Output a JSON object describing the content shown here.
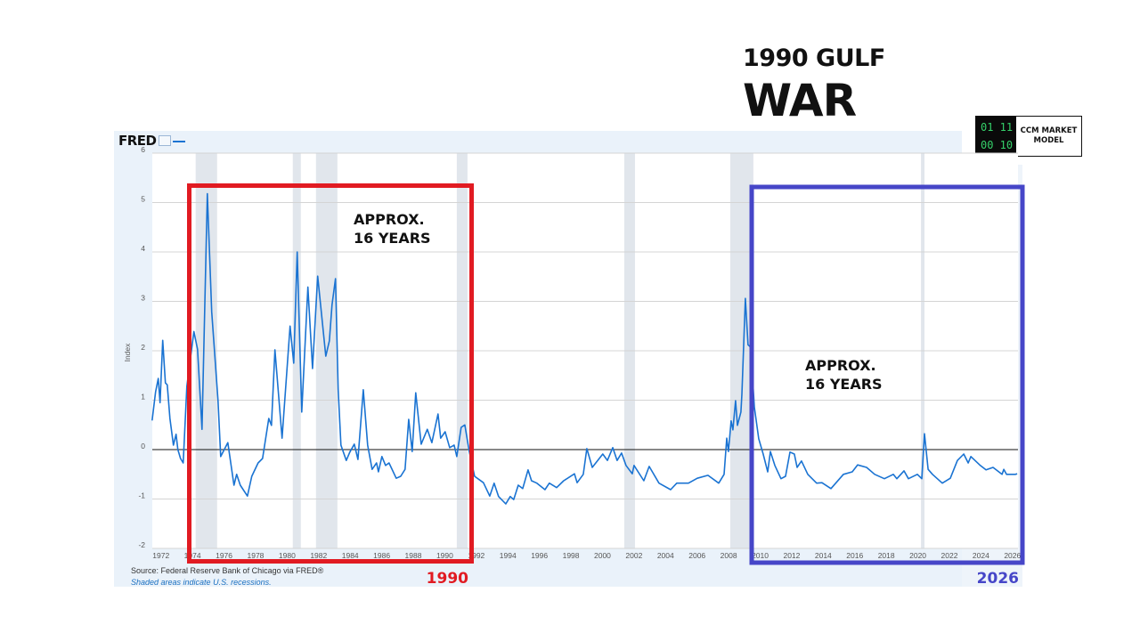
{
  "headline": {
    "line1": "1990 GULF",
    "line2": "WAR"
  },
  "logo": {
    "fred": "FRED",
    "ccm_binary": [
      "01 11",
      "00 10"
    ],
    "ccm_text": "CCM MARKET MODEL"
  },
  "footer": {
    "source": "Source: Federal Reserve Bank of Chicago via FRED®",
    "note": "Shaded areas indicate U.S. recessions."
  },
  "annotations": {
    "left_box": {
      "line1": "APPROX.",
      "line2": "16 YEARS",
      "year": "1990",
      "color": "#e11b22"
    },
    "right_box": {
      "line1": "APPROX.",
      "line2": "16 YEARS",
      "year": "2026",
      "color": "#4646c8"
    }
  },
  "chart_data": {
    "type": "line",
    "ylabel": "Index",
    "xlabel": "",
    "ylim": [
      -2,
      6
    ],
    "xlim": [
      1971.45,
      2026.35
    ],
    "yticks": [
      "6",
      "5",
      "4",
      "3",
      "2",
      "1",
      "0",
      "-1",
      "-2"
    ],
    "xticks": [
      "1972",
      "1974",
      "1976",
      "1978",
      "1980",
      "1982",
      "1984",
      "1986",
      "1988",
      "1990",
      "1992",
      "1994",
      "1996",
      "1998",
      "2000",
      "2002",
      "2004",
      "2006",
      "2008",
      "2010",
      "2012",
      "2014",
      "2016",
      "2018",
      "2020",
      "2022",
      "2024",
      "2026"
    ],
    "grid": "horizontal",
    "zero_line": true,
    "line_color": "#1a73d2",
    "recession_color": "#e1e6ec",
    "recessions": [
      [
        1974.2,
        1975.56
      ],
      [
        1980.36,
        1980.87
      ],
      [
        1981.83,
        1983.19
      ],
      [
        1990.76,
        1991.44
      ],
      [
        2001.38,
        2002.06
      ],
      [
        2008.1,
        2009.57
      ],
      [
        2020.2,
        2020.42
      ]
    ],
    "series": [
      {
        "points": [
          [
            1971.44,
            0.59
          ],
          [
            1971.66,
            1.17
          ],
          [
            1971.83,
            1.44
          ],
          [
            1971.94,
            0.95
          ],
          [
            1972.11,
            2.21
          ],
          [
            1972.28,
            1.35
          ],
          [
            1972.4,
            1.31
          ],
          [
            1972.57,
            0.63
          ],
          [
            1972.79,
            0.09
          ],
          [
            1972.96,
            0.31
          ],
          [
            1973.07,
            0
          ],
          [
            1973.24,
            -0.18
          ],
          [
            1973.41,
            -0.27
          ],
          [
            1973.64,
            1.28
          ],
          [
            1974.09,
            2.39
          ],
          [
            1974.32,
            2.03
          ],
          [
            1974.6,
            0.41
          ],
          [
            1974.94,
            5.18
          ],
          [
            1975.22,
            2.79
          ],
          [
            1975.62,
            0.99
          ],
          [
            1975.79,
            -0.14
          ],
          [
            1976.24,
            0.14
          ],
          [
            1976.63,
            -0.72
          ],
          [
            1976.8,
            -0.5
          ],
          [
            1977.03,
            -0.72
          ],
          [
            1977.48,
            -0.94
          ],
          [
            1977.76,
            -0.54
          ],
          [
            1978.16,
            -0.27
          ],
          [
            1978.44,
            -0.18
          ],
          [
            1978.84,
            0.63
          ],
          [
            1979.01,
            0.49
          ],
          [
            1979.23,
            2.02
          ],
          [
            1979.68,
            0.23
          ],
          [
            1980.19,
            2.5
          ],
          [
            1980.42,
            1.75
          ],
          [
            1980.64,
            4.0
          ],
          [
            1980.93,
            0.76
          ],
          [
            1981.32,
            3.29
          ],
          [
            1981.61,
            1.64
          ],
          [
            1981.94,
            3.51
          ],
          [
            1982.45,
            1.89
          ],
          [
            1982.68,
            2.2
          ],
          [
            1982.85,
            2.93
          ],
          [
            1983.07,
            3.46
          ],
          [
            1983.24,
            1.22
          ],
          [
            1983.41,
            0.09
          ],
          [
            1983.75,
            -0.22
          ],
          [
            1983.98,
            -0.05
          ],
          [
            1984.26,
            0.11
          ],
          [
            1984.49,
            -0.2
          ],
          [
            1984.83,
            1.21
          ],
          [
            1985.11,
            0.09
          ],
          [
            1985.39,
            -0.4
          ],
          [
            1985.67,
            -0.27
          ],
          [
            1985.79,
            -0.45
          ],
          [
            1986.01,
            -0.14
          ],
          [
            1986.24,
            -0.32
          ],
          [
            1986.46,
            -0.27
          ],
          [
            1986.92,
            -0.58
          ],
          [
            1987.2,
            -0.54
          ],
          [
            1987.48,
            -0.4
          ],
          [
            1987.71,
            0.61
          ],
          [
            1987.93,
            -0.04
          ],
          [
            1988.16,
            1.15
          ],
          [
            1988.5,
            0.11
          ],
          [
            1988.89,
            0.41
          ],
          [
            1989.18,
            0.14
          ],
          [
            1989.57,
            0.72
          ],
          [
            1989.74,
            0.23
          ],
          [
            1990.02,
            0.36
          ],
          [
            1990.31,
            0.04
          ],
          [
            1990.59,
            0.09
          ],
          [
            1990.76,
            -0.14
          ],
          [
            1991.04,
            0.45
          ],
          [
            1991.27,
            0.5
          ],
          [
            1991.55,
            -0.04
          ],
          [
            1991.89,
            -0.54
          ],
          [
            1992.45,
            -0.67
          ],
          [
            1992.85,
            -0.94
          ],
          [
            1993.13,
            -0.68
          ],
          [
            1993.41,
            -0.95
          ],
          [
            1993.87,
            -1.1
          ],
          [
            1994.15,
            -0.95
          ],
          [
            1994.37,
            -1.01
          ],
          [
            1994.66,
            -0.72
          ],
          [
            1994.94,
            -0.79
          ],
          [
            1995.28,
            -0.41
          ],
          [
            1995.5,
            -0.63
          ],
          [
            1995.84,
            -0.68
          ],
          [
            1996.35,
            -0.81
          ],
          [
            1996.63,
            -0.68
          ],
          [
            1997.09,
            -0.77
          ],
          [
            1997.54,
            -0.63
          ],
          [
            1998.22,
            -0.49
          ],
          [
            1998.39,
            -0.67
          ],
          [
            1998.78,
            -0.5
          ],
          [
            1999.01,
            0.02
          ],
          [
            1999.35,
            -0.36
          ],
          [
            2000.02,
            -0.09
          ],
          [
            2000.31,
            -0.22
          ],
          [
            2000.65,
            0.04
          ],
          [
            2000.93,
            -0.22
          ],
          [
            2001.21,
            -0.07
          ],
          [
            2001.49,
            -0.32
          ],
          [
            2001.89,
            -0.49
          ],
          [
            2002.0,
            -0.32
          ],
          [
            2002.62,
            -0.63
          ],
          [
            2002.96,
            -0.34
          ],
          [
            2003.58,
            -0.68
          ],
          [
            2004.32,
            -0.81
          ],
          [
            2004.71,
            -0.68
          ],
          [
            2005.45,
            -0.68
          ],
          [
            2006.01,
            -0.58
          ],
          [
            2006.69,
            -0.52
          ],
          [
            2007.37,
            -0.68
          ],
          [
            2007.71,
            -0.5
          ],
          [
            2007.88,
            0.23
          ],
          [
            2007.99,
            -0.04
          ],
          [
            2008.16,
            0.58
          ],
          [
            2008.27,
            0.4
          ],
          [
            2008.44,
            0.99
          ],
          [
            2008.56,
            0.49
          ],
          [
            2008.78,
            0.76
          ],
          [
            2008.84,
            1.12
          ],
          [
            2009.06,
            3.06
          ],
          [
            2009.23,
            2.12
          ],
          [
            2009.4,
            2.07
          ],
          [
            2009.63,
            0.86
          ],
          [
            2009.91,
            0.22
          ],
          [
            2010.19,
            -0.09
          ],
          [
            2010.48,
            -0.45
          ],
          [
            2010.65,
            -0.04
          ],
          [
            2010.93,
            -0.32
          ],
          [
            2011.32,
            -0.59
          ],
          [
            2011.61,
            -0.54
          ],
          [
            2011.89,
            -0.05
          ],
          [
            2012.17,
            -0.09
          ],
          [
            2012.34,
            -0.36
          ],
          [
            2012.62,
            -0.23
          ],
          [
            2013.02,
            -0.5
          ],
          [
            2013.58,
            -0.68
          ],
          [
            2013.92,
            -0.67
          ],
          [
            2014.49,
            -0.79
          ],
          [
            2015.28,
            -0.5
          ],
          [
            2015.84,
            -0.45
          ],
          [
            2016.18,
            -0.31
          ],
          [
            2016.75,
            -0.36
          ],
          [
            2017.26,
            -0.5
          ],
          [
            2017.88,
            -0.59
          ],
          [
            2018.44,
            -0.5
          ],
          [
            2018.67,
            -0.59
          ],
          [
            2019.12,
            -0.43
          ],
          [
            2019.4,
            -0.59
          ],
          [
            2019.97,
            -0.5
          ],
          [
            2020.25,
            -0.59
          ],
          [
            2020.42,
            0.32
          ],
          [
            2020.65,
            -0.4
          ],
          [
            2020.93,
            -0.5
          ],
          [
            2021.55,
            -0.68
          ],
          [
            2022.06,
            -0.58
          ],
          [
            2022.51,
            -0.22
          ],
          [
            2022.91,
            -0.09
          ],
          [
            2023.19,
            -0.27
          ],
          [
            2023.36,
            -0.14
          ],
          [
            2023.92,
            -0.31
          ],
          [
            2024.32,
            -0.41
          ],
          [
            2024.77,
            -0.36
          ],
          [
            2025.34,
            -0.5
          ],
          [
            2025.45,
            -0.4
          ],
          [
            2025.62,
            -0.5
          ],
          [
            2026.18,
            -0.5
          ],
          [
            2026.3,
            -0.49
          ]
        ]
      }
    ]
  }
}
